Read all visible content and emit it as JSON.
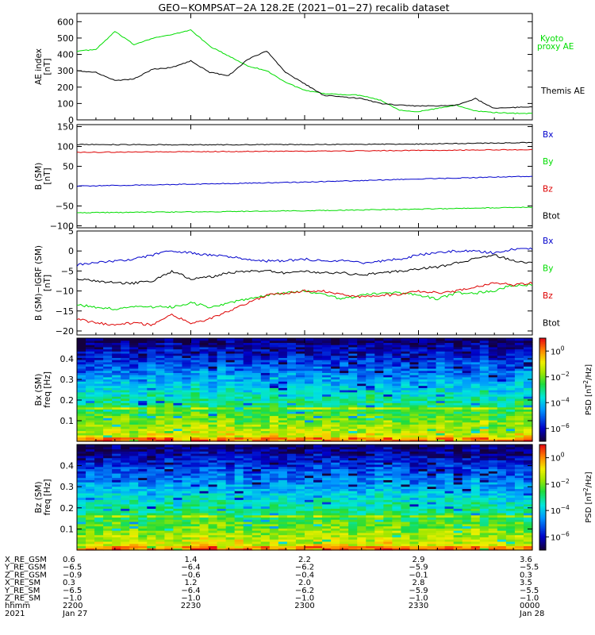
{
  "title": "GEO−KOMPSAT−2A 128.2E (2021−01−27) recalib dataset",
  "colors": {
    "black": "#000000",
    "green": "#00dd00",
    "blue": "#0000cc",
    "red": "#dd0000"
  },
  "chart_data": [
    {
      "type": "line",
      "panel": "ae",
      "ylabel": [
        "AE index",
        "[nT]"
      ],
      "ylim": [
        0,
        650
      ],
      "yticks": [
        "0",
        "100",
        "200",
        "300",
        "400",
        "500",
        "600"
      ],
      "ytick_values": [
        0,
        100,
        200,
        300,
        400,
        500,
        600
      ],
      "x": [
        0,
        5,
        10,
        15,
        20,
        25,
        30,
        35,
        40,
        45,
        50,
        55,
        60,
        65,
        70,
        75,
        80,
        85,
        90,
        95,
        100,
        105,
        110,
        115,
        120
      ],
      "series": [
        {
          "name": "Kyoto proxy AE",
          "legend": [
            "Kyoto",
            "proxy AE"
          ],
          "color": "green",
          "values": [
            420,
            430,
            540,
            460,
            500,
            520,
            550,
            450,
            390,
            330,
            300,
            230,
            180,
            160,
            155,
            150,
            120,
            60,
            50,
            70,
            90,
            55,
            45,
            40,
            40
          ]
        },
        {
          "name": "Themis AE",
          "legend": [
            "Themis AE"
          ],
          "color": "black",
          "values": [
            300,
            290,
            240,
            250,
            310,
            320,
            360,
            290,
            270,
            370,
            420,
            290,
            220,
            150,
            140,
            130,
            100,
            90,
            85,
            85,
            90,
            130,
            70,
            75,
            80
          ]
        }
      ]
    },
    {
      "type": "line",
      "panel": "b_sm",
      "ylabel": [
        "B (SM)",
        "[nT]"
      ],
      "ylim": [
        -105,
        155
      ],
      "yticks": [
        "−100",
        "−50",
        "0",
        "50",
        "100",
        "150"
      ],
      "ytick_values": [
        -100,
        -50,
        0,
        50,
        100,
        150
      ],
      "x": [
        0,
        30,
        60,
        90,
        120
      ],
      "series": [
        {
          "name": "Bx",
          "color": "blue",
          "values": [
            0,
            5,
            10,
            18,
            25
          ]
        },
        {
          "name": "By",
          "color": "green",
          "values": [
            -67,
            -65,
            -62,
            -58,
            -53
          ]
        },
        {
          "name": "Bz",
          "color": "red",
          "values": [
            85,
            87,
            88,
            90,
            92
          ]
        },
        {
          "name": "Btot",
          "color": "black",
          "values": [
            105,
            104,
            105,
            106,
            110
          ]
        }
      ]
    },
    {
      "type": "line",
      "panel": "b_minus_igrf",
      "ylabel": [
        "B (SM)−IGRF (SM)",
        "[nT]"
      ],
      "ylim": [
        -21,
        5
      ],
      "yticks": [
        "−20",
        "−15",
        "−10",
        "−5",
        "0",
        "5"
      ],
      "ytick_values": [
        -20,
        -15,
        -10,
        -5,
        0,
        5
      ],
      "x": [
        0,
        5,
        10,
        15,
        20,
        25,
        30,
        35,
        40,
        45,
        50,
        55,
        60,
        65,
        70,
        75,
        80,
        85,
        90,
        95,
        100,
        105,
        110,
        115,
        120
      ],
      "series": [
        {
          "name": "Bx",
          "color": "blue",
          "values": [
            -3.5,
            -3,
            -2.5,
            -2,
            -1,
            0,
            -0.5,
            -1,
            -1.5,
            -2,
            -2.5,
            -2.5,
            -2,
            -2.5,
            -2.5,
            -3,
            -2.5,
            -2,
            -1,
            -0.5,
            0,
            0,
            -0.5,
            0.5,
            0.5
          ]
        },
        {
          "name": "By",
          "color": "green",
          "values": [
            -13.5,
            -14,
            -14.5,
            -14,
            -14,
            -14,
            -13,
            -14,
            -13,
            -12,
            -11,
            -10.5,
            -10,
            -11,
            -12,
            -11,
            -10.5,
            -10.5,
            -11,
            -12,
            -10.5,
            -10.5,
            -10,
            -8.5,
            -8.5
          ]
        },
        {
          "name": "Bz",
          "color": "red",
          "values": [
            -17,
            -18,
            -18.5,
            -18,
            -18.5,
            -16,
            -18,
            -17,
            -15,
            -13,
            -11,
            -10.5,
            -10,
            -10,
            -11,
            -11.5,
            -11,
            -11,
            -10,
            -10.5,
            -10,
            -9,
            -8,
            -8.5,
            -8
          ]
        },
        {
          "name": "Btot",
          "color": "black",
          "values": [
            -7,
            -7.5,
            -8,
            -8,
            -7.5,
            -5,
            -7,
            -6.5,
            -5.5,
            -5,
            -5,
            -5.5,
            -5,
            -5.5,
            -5.5,
            -6,
            -5.5,
            -5,
            -4.5,
            -4,
            -3,
            -2,
            -1,
            -2.5,
            -3
          ]
        }
      ]
    },
    {
      "type": "heatmap",
      "panel": "spec_bx",
      "ylabel": [
        "Bx (SM)",
        "freq [Hz]"
      ],
      "ylim": [
        0,
        0.5
      ],
      "yticks": [
        "0.1",
        "0.2",
        "0.3",
        "0.4"
      ],
      "ytick_values": [
        0.1,
        0.2,
        0.3,
        0.4
      ],
      "colorbar_label": [
        "PSD [nT",
        "2",
        "/Hz]"
      ],
      "colorbar_ticks": [
        {
          "base": "10",
          "exp": "0",
          "v": 0
        },
        {
          "base": "10",
          "exp": "−2",
          "v": -2
        },
        {
          "base": "10",
          "exp": "−4",
          "v": -4
        },
        {
          "base": "10",
          "exp": "−6",
          "v": -6
        }
      ],
      "clim_log10": [
        -7,
        1
      ]
    },
    {
      "type": "heatmap",
      "panel": "spec_bz",
      "ylabel": [
        "Bz (SM)",
        "freq [Hz]"
      ],
      "ylim": [
        0,
        0.5
      ],
      "yticks": [
        "0.1",
        "0.2",
        "0.3",
        "0.4"
      ],
      "ytick_values": [
        0.1,
        0.2,
        0.3,
        0.4
      ],
      "colorbar_label": [
        "PSD [nT",
        "2",
        "/Hz]"
      ],
      "colorbar_ticks": [
        {
          "base": "10",
          "exp": "0",
          "v": 0
        },
        {
          "base": "10",
          "exp": "−2",
          "v": -2
        },
        {
          "base": "10",
          "exp": "−4",
          "v": -4
        },
        {
          "base": "10",
          "exp": "−6",
          "v": -6
        }
      ],
      "clim_log10": [
        -7,
        1
      ]
    }
  ],
  "x_axis": {
    "tick_minutes": [
      0,
      30,
      60,
      90,
      120
    ],
    "row_labels": [
      "X_RE_GSM",
      "Y_RE_GSM",
      "Z_RE_GSM",
      "X_RE_SM",
      "Y_RE_SM",
      "Z_RE_SM",
      "hhmm",
      "2021"
    ],
    "columns": [
      [
        "0.6",
        "−6.5",
        "−0.9",
        "0.3",
        "−6.5",
        "−1.0",
        "2200",
        "Jan 27"
      ],
      [
        "1.4",
        "−6.4",
        "−0.6",
        "1.2",
        "−6.4",
        "−1.0",
        "2230",
        ""
      ],
      [
        "2.2",
        "−6.2",
        "−0.4",
        "2.0",
        "−6.2",
        "−1.0",
        "2300",
        ""
      ],
      [
        "2.9",
        "−5.9",
        "−0.1",
        "2.8",
        "−5.9",
        "−1.0",
        "2330",
        ""
      ],
      [
        "3.6",
        "−5.5",
        "0.3",
        "3.5",
        "−5.5",
        "−1.0",
        "0000",
        "Jan 28"
      ]
    ]
  }
}
